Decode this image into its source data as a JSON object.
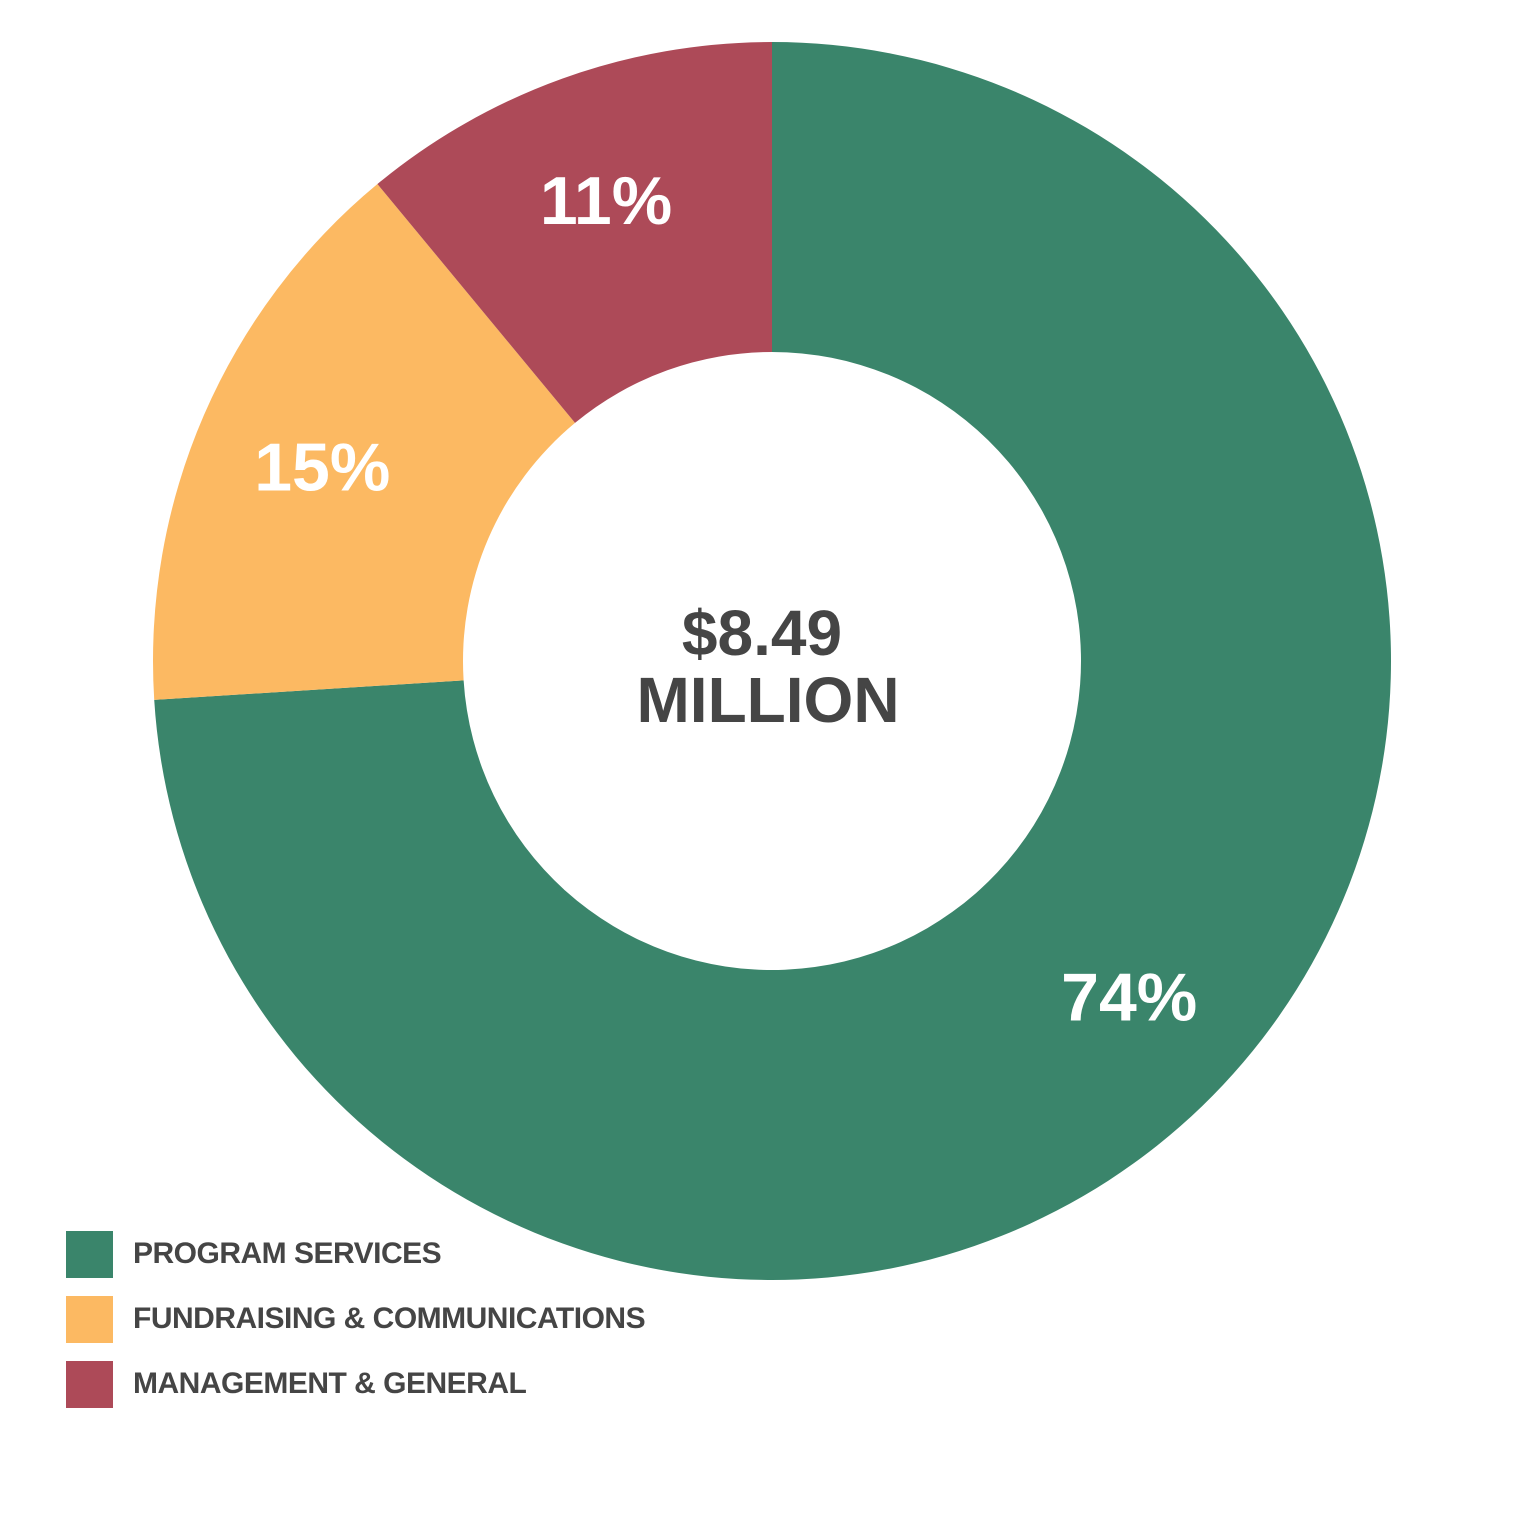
{
  "chart_data": {
    "type": "pie",
    "donut": true,
    "center_text": [
      "$8.49",
      "MILLION"
    ],
    "slices": [
      {
        "name": "PROGRAM SERVICES",
        "value": 74,
        "label": "74%",
        "color": "#3a856b"
      },
      {
        "name": "FUNDRAISING & COMMUNICATIONS",
        "value": 15,
        "label": "15%",
        "color": "#fcb962"
      },
      {
        "name": "MANAGEMENT & GENERAL",
        "value": 11,
        "label": "11%",
        "color": "#ad4a58"
      }
    ],
    "legend_position": "bottom-left"
  }
}
